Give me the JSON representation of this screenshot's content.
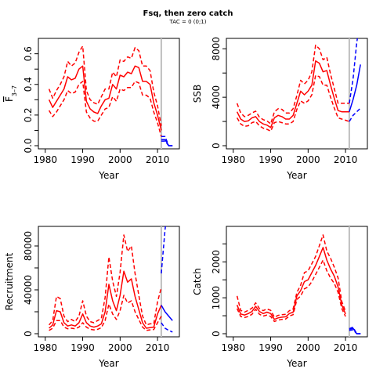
{
  "figure": {
    "title": "Fsq, then zero catch",
    "subtitle": "TAC = 0 (0;1)"
  },
  "colors": {
    "historic": "#ff0000",
    "projection": "#0000ff",
    "marker": "#bebebe",
    "axis": "#000000"
  },
  "marker_year": 2011,
  "chart_data": [
    {
      "type": "line",
      "panel": "F",
      "xlabel": "Year",
      "ylabel_main": "F",
      "ylabel_sub": "3–7",
      "xlim": [
        1979,
        2015
      ],
      "ylim": [
        0,
        0.68
      ],
      "xticks": [
        1980,
        1990,
        2000,
        2010
      ],
      "yticks": [
        0,
        0.1,
        0.2,
        0.3,
        0.4,
        0.5,
        0.6
      ],
      "ytick_labels": [
        "0.0",
        "",
        "0.2",
        "",
        "0.4",
        "",
        "0.6"
      ],
      "historic": {
        "x": [
          1981,
          1982,
          1983,
          1984,
          1985,
          1986,
          1987,
          1988,
          1989,
          1990,
          1991,
          1992,
          1993,
          1994,
          1995,
          1996,
          1997,
          1998,
          1999,
          2000,
          2001,
          2002,
          2003,
          2004,
          2005,
          2006,
          2007,
          2008,
          2009,
          2010,
          2011
        ],
        "mid": [
          0.3,
          0.25,
          0.29,
          0.33,
          0.37,
          0.45,
          0.43,
          0.44,
          0.5,
          0.52,
          0.29,
          0.24,
          0.22,
          0.21,
          0.26,
          0.3,
          0.31,
          0.4,
          0.37,
          0.46,
          0.45,
          0.48,
          0.47,
          0.52,
          0.51,
          0.42,
          0.42,
          0.4,
          0.28,
          0.2,
          0.1
        ],
        "lo": [
          0.23,
          0.19,
          0.22,
          0.26,
          0.3,
          0.36,
          0.34,
          0.35,
          0.4,
          0.42,
          0.22,
          0.18,
          0.16,
          0.16,
          0.2,
          0.24,
          0.25,
          0.32,
          0.29,
          0.37,
          0.36,
          0.38,
          0.38,
          0.42,
          0.41,
          0.33,
          0.33,
          0.31,
          0.22,
          0.15,
          0.06
        ],
        "hi": [
          0.37,
          0.31,
          0.36,
          0.4,
          0.45,
          0.55,
          0.52,
          0.54,
          0.61,
          0.65,
          0.36,
          0.3,
          0.28,
          0.27,
          0.32,
          0.37,
          0.37,
          0.48,
          0.45,
          0.56,
          0.55,
          0.58,
          0.57,
          0.64,
          0.62,
          0.52,
          0.52,
          0.49,
          0.35,
          0.26,
          0.13
        ]
      },
      "projection": {
        "x": [
          2011,
          2012,
          2013,
          2014
        ],
        "mid": [
          0.04,
          0.04,
          0.0,
          0.0
        ],
        "lo": [
          0.03,
          0.03,
          0.0,
          0.0
        ],
        "hi": [
          0.06,
          0.06,
          0.0,
          0.0
        ]
      }
    },
    {
      "type": "line",
      "panel": "SSB",
      "xlabel": "Year",
      "ylabel_main": "SSB",
      "ylabel_sub": "",
      "xlim": [
        1979,
        2015
      ],
      "ylim": [
        0,
        8600
      ],
      "xticks": [
        1980,
        1990,
        2000,
        2010
      ],
      "yticks": [
        0,
        2000,
        4000,
        6000,
        8000
      ],
      "ytick_labels": [
        "0",
        "",
        "4000",
        "",
        "8000"
      ],
      "historic": {
        "x": [
          1981,
          1982,
          1983,
          1984,
          1985,
          1986,
          1987,
          1988,
          1989,
          1990,
          1991,
          1992,
          1993,
          1994,
          1995,
          1996,
          1997,
          1998,
          1999,
          2000,
          2001,
          2002,
          2003,
          2004,
          2005,
          2006,
          2007,
          2008,
          2009,
          2010,
          2011
        ],
        "mid": [
          2800,
          2200,
          2000,
          2050,
          2300,
          2400,
          2000,
          1800,
          1700,
          1500,
          2300,
          2500,
          2400,
          2200,
          2200,
          2500,
          3500,
          4500,
          4200,
          4500,
          5000,
          7000,
          6800,
          6100,
          6200,
          5000,
          3900,
          2900,
          2800,
          2800,
          2800
        ],
        "lo": [
          2300,
          1800,
          1600,
          1650,
          1900,
          2000,
          1650,
          1450,
          1350,
          1200,
          1900,
          2000,
          1900,
          1800,
          1800,
          2000,
          3000,
          3700,
          3500,
          3700,
          4200,
          5800,
          5700,
          5000,
          5000,
          4000,
          3100,
          2300,
          2200,
          2100,
          2000
        ],
        "hi": [
          3500,
          2700,
          2400,
          2500,
          2700,
          2850,
          2350,
          2150,
          2050,
          1800,
          2800,
          3050,
          3000,
          2700,
          2700,
          3050,
          4150,
          5400,
          5100,
          5400,
          6100,
          8300,
          8000,
          7100,
          7300,
          5900,
          4700,
          3500,
          3500,
          3500,
          3500
        ]
      },
      "projection": {
        "x": [
          2011,
          2012,
          2013,
          2014
        ],
        "mid": [
          2800,
          3800,
          5000,
          6700
        ],
        "lo": [
          2000,
          2500,
          2800,
          3100
        ],
        "hi": [
          3500,
          5500,
          8500,
          10500
        ]
      }
    },
    {
      "type": "line",
      "panel": "Recruitment",
      "xlabel": "Year",
      "ylabel_main": "Recruitment",
      "ylabel_sub": "",
      "xlim": [
        1979,
        2015
      ],
      "ylim": [
        0,
        95000
      ],
      "xticks": [
        1980,
        1990,
        2000,
        2010
      ],
      "yticks": [
        0,
        20000,
        40000,
        60000,
        80000
      ],
      "ytick_labels": [
        "0",
        "",
        "40000",
        "",
        "80000"
      ],
      "historic": {
        "x": [
          1981,
          1982,
          1983,
          1984,
          1985,
          1986,
          1987,
          1988,
          1989,
          1990,
          1991,
          1992,
          1993,
          1994,
          1995,
          1996,
          1997,
          1998,
          1999,
          2000,
          2001,
          2002,
          2003,
          2004,
          2005,
          2006,
          2007,
          2008,
          2009,
          2010,
          2011
        ],
        "mid": [
          5000,
          8000,
          21000,
          20000,
          10000,
          7000,
          8000,
          7000,
          10000,
          18000,
          10000,
          7000,
          6000,
          7000,
          9000,
          20000,
          45000,
          30000,
          21000,
          35000,
          57000,
          47000,
          50000,
          34000,
          22000,
          10000,
          5000,
          5500,
          6000,
          18000,
          26000
        ],
        "lo": [
          3000,
          5000,
          12000,
          12000,
          6000,
          4500,
          5000,
          4500,
          6000,
          10000,
          6000,
          4000,
          3500,
          4000,
          5500,
          12000,
          27000,
          18000,
          13000,
          21000,
          35000,
          28000,
          30000,
          20000,
          13000,
          6000,
          3000,
          3500,
          3800,
          10000,
          16000
        ],
        "hi": [
          8000,
          12000,
          34000,
          32000,
          16000,
          11000,
          13000,
          11000,
          16000,
          30000,
          16000,
          11000,
          10000,
          12000,
          14000,
          33000,
          70000,
          48000,
          34000,
          56000,
          90000,
          75000,
          80000,
          55000,
          35000,
          16000,
          8000,
          9000,
          9000,
          29000,
          42000
        ]
      },
      "projection": {
        "x": [
          2011,
          2012,
          2013,
          2014
        ],
        "mid": [
          26000,
          20000,
          16000,
          12000
        ],
        "lo": [
          10000,
          5000,
          3000,
          1500
        ],
        "hi": [
          55000,
          95000,
          120000,
          150000
        ]
      }
    },
    {
      "type": "line",
      "panel": "Catch",
      "xlabel": "Year",
      "ylabel_main": "Catch",
      "ylabel_sub": "",
      "xlim": [
        1979,
        2015
      ],
      "ylim": [
        0,
        2900
      ],
      "xticks": [
        1980,
        1990,
        2000,
        2010
      ],
      "yticks": [
        0,
        500,
        1000,
        1500,
        2000,
        2500
      ],
      "ytick_labels": [
        "0",
        "",
        "1000",
        "",
        "2000",
        ""
      ],
      "historic": {
        "x": [
          1981,
          1982,
          1983,
          1984,
          1985,
          1986,
          1987,
          1988,
          1989,
          1990,
          1991,
          1992,
          1993,
          1994,
          1995,
          1996,
          1997,
          1998,
          1999,
          2000,
          2001,
          2002,
          2003,
          2004,
          2005,
          2006,
          2007,
          2008,
          2009,
          2010
        ],
        "mid": [
          800,
          550,
          520,
          560,
          620,
          760,
          620,
          560,
          600,
          560,
          400,
          440,
          460,
          470,
          560,
          600,
          1050,
          1200,
          1450,
          1500,
          1700,
          1900,
          2150,
          2400,
          2050,
          1800,
          1600,
          1300,
          800,
          550
        ],
        "lo": [
          700,
          480,
          450,
          480,
          540,
          680,
          540,
          490,
          520,
          480,
          340,
          380,
          400,
          410,
          490,
          530,
          950,
          1050,
          1250,
          1300,
          1450,
          1650,
          1850,
          2050,
          1750,
          1550,
          1400,
          1150,
          700,
          480
        ],
        "hi": [
          1050,
          650,
          600,
          650,
          710,
          860,
          700,
          640,
          690,
          650,
          460,
          510,
          530,
          540,
          640,
          690,
          1150,
          1350,
          1700,
          1750,
          1950,
          2150,
          2450,
          2750,
          2300,
          2100,
          1850,
          1550,
          900,
          620
        ]
      },
      "projection": {
        "x": [
          2011,
          2012,
          2013,
          2014
        ],
        "mid": [
          120,
          150,
          0,
          0
        ],
        "lo": [
          90,
          110,
          0,
          0
        ],
        "hi": [
          140,
          180,
          0,
          0
        ]
      }
    }
  ]
}
